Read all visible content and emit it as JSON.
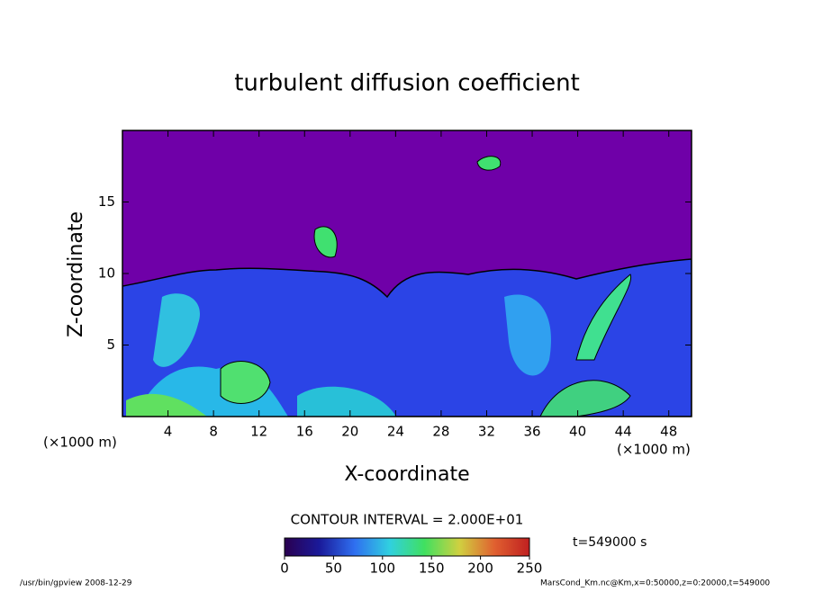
{
  "chart_data": {
    "type": "contour",
    "title": "turbulent diffusion coefficient",
    "xlabel": "X-coordinate",
    "ylabel": "Z-coordinate",
    "x_unit": "(×1000 m)",
    "y_unit": "(×1000 m)",
    "xlim": [
      0,
      50
    ],
    "xticks": [
      4,
      8,
      12,
      16,
      20,
      24,
      28,
      32,
      36,
      40,
      44,
      48
    ],
    "ylim": [
      0,
      20
    ],
    "yticks": [
      5,
      10,
      15
    ],
    "contour_interval": "CONTOUR INTERVAL = 2.000E+01",
    "colorbar": {
      "lim": [
        0,
        250
      ],
      "ticks": [
        0,
        50,
        100,
        150,
        200,
        250
      ],
      "colors": [
        "#2a0050",
        "#1a1a9a",
        "#2f6ff0",
        "#30d0e0",
        "#40e060",
        "#d0d040",
        "#e06030",
        "#c02020"
      ]
    },
    "time_label": "t=549000 s",
    "footer_left": "/usr/bin/gpview   2008-12-29",
    "footer_right": "MarsCond_Km.nc@Km,x=0:50000,z=0:20000,t=549000"
  }
}
